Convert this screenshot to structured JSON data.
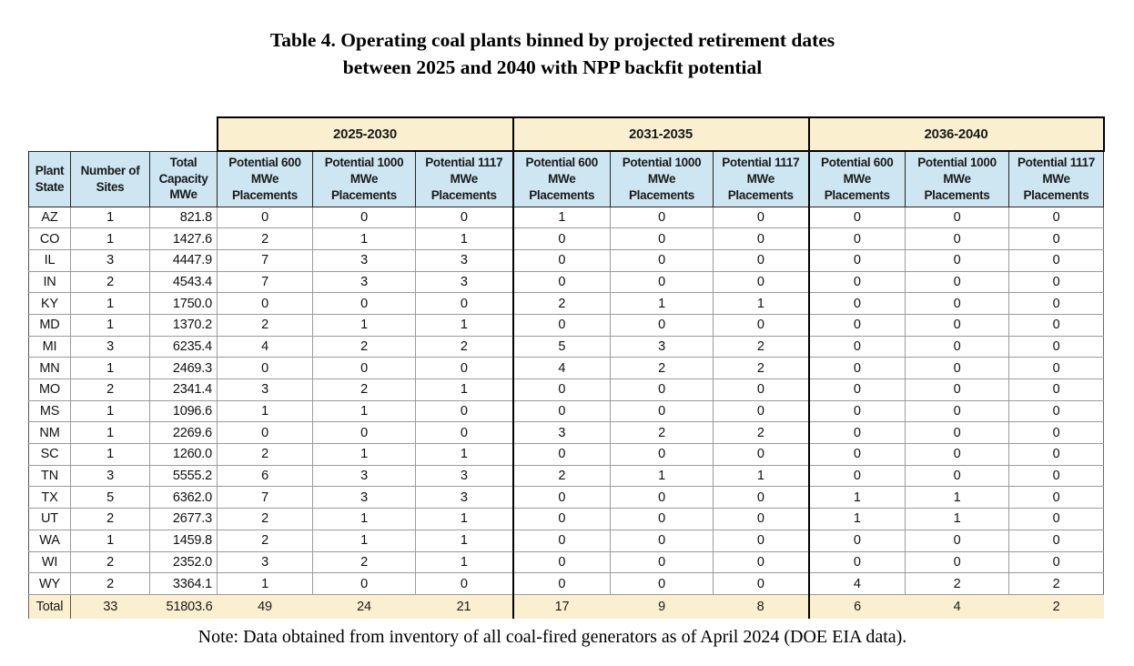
{
  "title": {
    "line1": "Table 4. Operating coal plants binned by projected retirement dates",
    "line2": "between 2025 and 2040 with NPP backfit potential"
  },
  "note": "Note: Data obtained from inventory of all coal-fired generators as of April 2024 (DOE EIA data).",
  "colors": {
    "group_header_bg": "#FAF0D0",
    "column_header_bg": "#CDE6F2",
    "total_row_bg": "#FAF0D0",
    "grid_line": "#9b9b9b",
    "group_divider": "#000000"
  },
  "table": {
    "group_headers": [
      "2025-2030",
      "2031-2035",
      "2036-2040"
    ],
    "column_headers": [
      "Plant\nState",
      "Number of\nSites",
      "Total\nCapacity\nMWe",
      "Potential 600\nMWe\nPlacements",
      "Potential 1000\nMWe\nPlacements",
      "Potential 1117\nMWe\nPlacements",
      "Potential 600\nMWe\nPlacements",
      "Potential 1000\nMWe\nPlacements",
      "Potential 1117\nMWe\nPlacements",
      "Potential 600\nMWe\nPlacements",
      "Potential 1000\nMWe\nPlacements",
      "Potential 1117\nMWe\nPlacements"
    ],
    "rows": [
      [
        "AZ",
        "1",
        "821.8",
        "0",
        "0",
        "0",
        "1",
        "0",
        "0",
        "0",
        "0",
        "0"
      ],
      [
        "CO",
        "1",
        "1427.6",
        "2",
        "1",
        "1",
        "0",
        "0",
        "0",
        "0",
        "0",
        "0"
      ],
      [
        "IL",
        "3",
        "4447.9",
        "7",
        "3",
        "3",
        "0",
        "0",
        "0",
        "0",
        "0",
        "0"
      ],
      [
        "IN",
        "2",
        "4543.4",
        "7",
        "3",
        "3",
        "0",
        "0",
        "0",
        "0",
        "0",
        "0"
      ],
      [
        "KY",
        "1",
        "1750.0",
        "0",
        "0",
        "0",
        "2",
        "1",
        "1",
        "0",
        "0",
        "0"
      ],
      [
        "MD",
        "1",
        "1370.2",
        "2",
        "1",
        "1",
        "0",
        "0",
        "0",
        "0",
        "0",
        "0"
      ],
      [
        "MI",
        "3",
        "6235.4",
        "4",
        "2",
        "2",
        "5",
        "3",
        "2",
        "0",
        "0",
        "0"
      ],
      [
        "MN",
        "1",
        "2469.3",
        "0",
        "0",
        "0",
        "4",
        "2",
        "2",
        "0",
        "0",
        "0"
      ],
      [
        "MO",
        "2",
        "2341.4",
        "3",
        "2",
        "1",
        "0",
        "0",
        "0",
        "0",
        "0",
        "0"
      ],
      [
        "MS",
        "1",
        "1096.6",
        "1",
        "1",
        "0",
        "0",
        "0",
        "0",
        "0",
        "0",
        "0"
      ],
      [
        "NM",
        "1",
        "2269.6",
        "0",
        "0",
        "0",
        "3",
        "2",
        "2",
        "0",
        "0",
        "0"
      ],
      [
        "SC",
        "1",
        "1260.0",
        "2",
        "1",
        "1",
        "0",
        "0",
        "0",
        "0",
        "0",
        "0"
      ],
      [
        "TN",
        "3",
        "5555.2",
        "6",
        "3",
        "3",
        "2",
        "1",
        "1",
        "0",
        "0",
        "0"
      ],
      [
        "TX",
        "5",
        "6362.0",
        "7",
        "3",
        "3",
        "0",
        "0",
        "0",
        "1",
        "1",
        "0"
      ],
      [
        "UT",
        "2",
        "2677.3",
        "2",
        "1",
        "1",
        "0",
        "0",
        "0",
        "1",
        "1",
        "0"
      ],
      [
        "WA",
        "1",
        "1459.8",
        "2",
        "1",
        "1",
        "0",
        "0",
        "0",
        "0",
        "0",
        "0"
      ],
      [
        "WI",
        "2",
        "2352.0",
        "3",
        "2",
        "1",
        "0",
        "0",
        "0",
        "0",
        "0",
        "0"
      ],
      [
        "WY",
        "2",
        "3364.1",
        "1",
        "0",
        "0",
        "0",
        "0",
        "0",
        "4",
        "2",
        "2"
      ]
    ],
    "total_row": [
      "Total",
      "33",
      "51803.6",
      "49",
      "24",
      "21",
      "17",
      "9",
      "8",
      "6",
      "4",
      "2"
    ]
  }
}
